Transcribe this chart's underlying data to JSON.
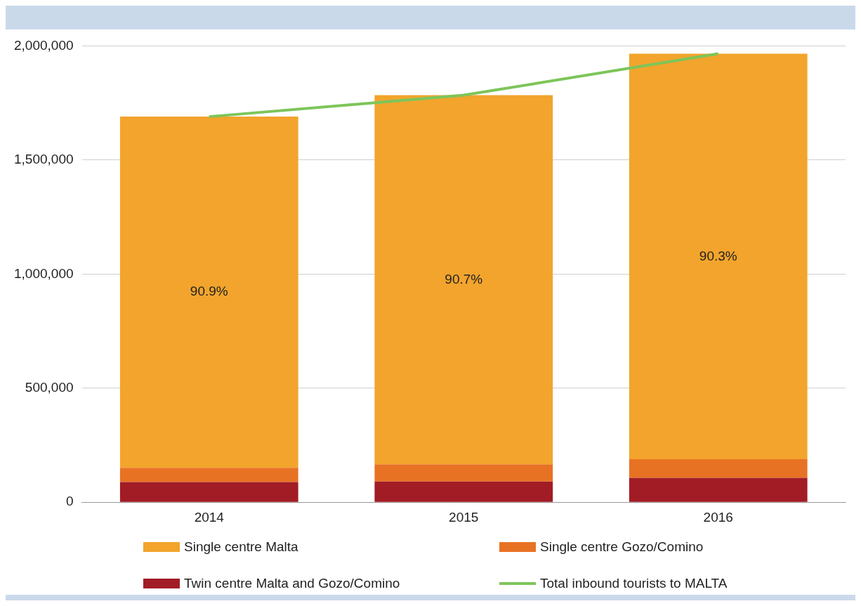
{
  "chart_data": {
    "type": "bar",
    "stacked": true,
    "categories": [
      "2014",
      "2015",
      "2016"
    ],
    "series": [
      {
        "name": "Twin centre Malta and Gozo/Comino",
        "color": "#a21c25",
        "values": [
          88000,
          91000,
          107000
        ]
      },
      {
        "name": "Single centre Gozo/Comino",
        "color": "#e87224",
        "values": [
          63000,
          75000,
          81000
        ]
      },
      {
        "name": "Single centre Malta",
        "color": "#f2a42c",
        "values": [
          1539000,
          1618000,
          1778000
        ]
      },
      {
        "name": "Total inbound tourists to MALTA",
        "type": "line",
        "color": "#7dc55a",
        "values": [
          1690000,
          1784000,
          1966000
        ],
        "marker": "none"
      }
    ],
    "annotations": [
      "90.9%",
      "90.7%",
      "90.3%"
    ],
    "ylim": [
      0,
      2000000
    ],
    "yticks": [
      {
        "value": 0,
        "label": "0"
      },
      {
        "value": 500000,
        "label": "500,000"
      },
      {
        "value": 1000000,
        "label": "1,000,000"
      },
      {
        "value": 1500000,
        "label": "1,500,000"
      },
      {
        "value": 2000000,
        "label": "2,000,000"
      }
    ],
    "grid": "y",
    "legend": "bottom"
  }
}
